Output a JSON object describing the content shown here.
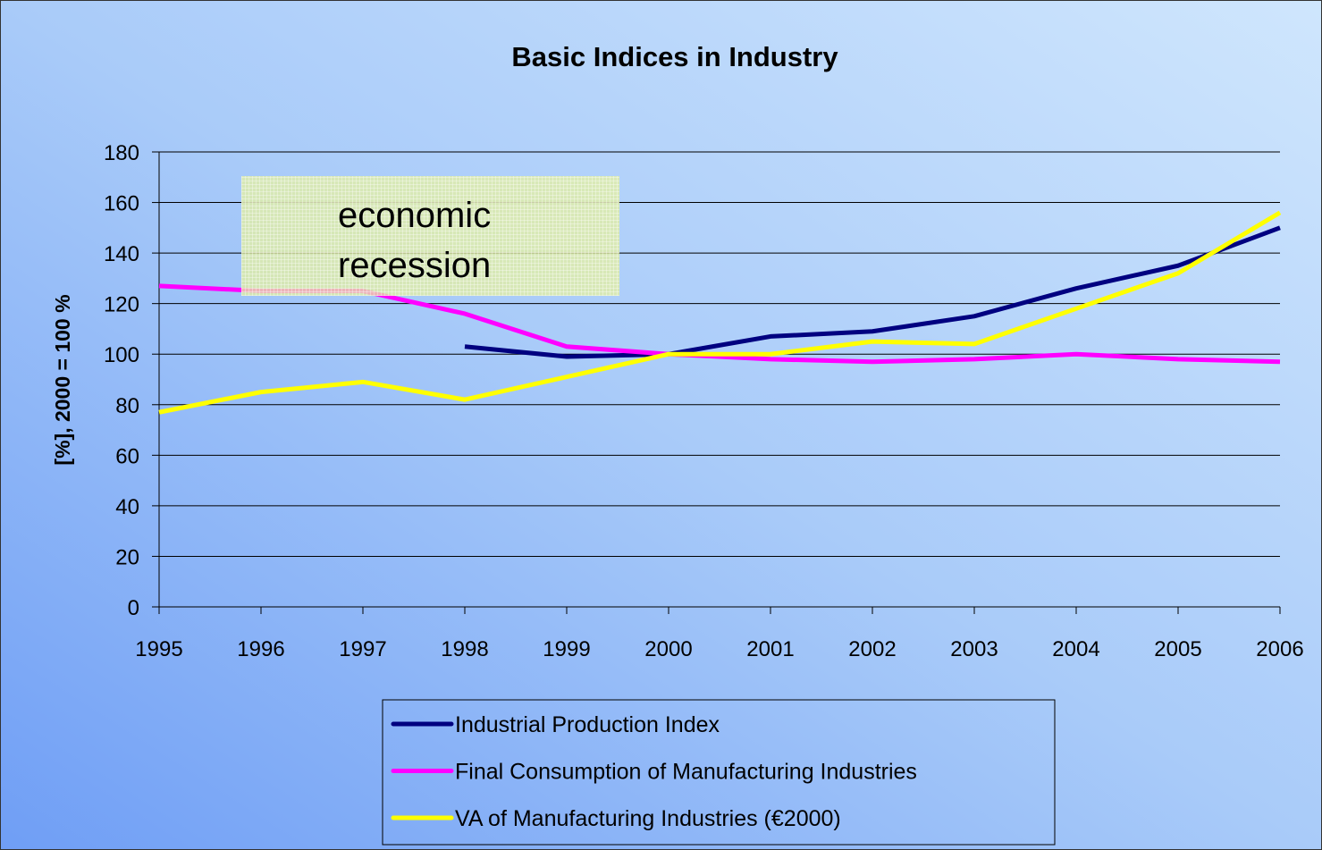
{
  "chart_data": {
    "type": "line",
    "title": "Basic Indices in Industry",
    "y_label": "[%], 2000 = 100 %",
    "annotation": "economic recession",
    "categories": [
      "1995",
      "1996",
      "1997",
      "1998",
      "1999",
      "2000",
      "2001",
      "2002",
      "2003",
      "2004",
      "2005",
      "2006"
    ],
    "series": [
      {
        "name": "Industrial Production Index",
        "color": "#000080",
        "values": [
          null,
          null,
          null,
          103,
          99,
          100,
          107,
          109,
          115,
          126,
          135,
          150
        ]
      },
      {
        "name": "Final Consumption of Manufacturing Industries",
        "color": "#ff00ff",
        "values": [
          127,
          125,
          125,
          116,
          103,
          100,
          98,
          97,
          98,
          100,
          98,
          97
        ]
      },
      {
        "name": "VA of Manufacturing Industries (€2000)",
        "color": "#ffff00",
        "values": [
          77,
          85,
          89,
          82,
          91,
          100,
          100,
          105,
          104,
          118,
          132,
          156
        ]
      }
    ],
    "ylim": [
      0,
      180
    ],
    "yticks": [
      0,
      20,
      40,
      60,
      80,
      100,
      120,
      140,
      160,
      180
    ],
    "grid": true,
    "legend": "bottom"
  }
}
